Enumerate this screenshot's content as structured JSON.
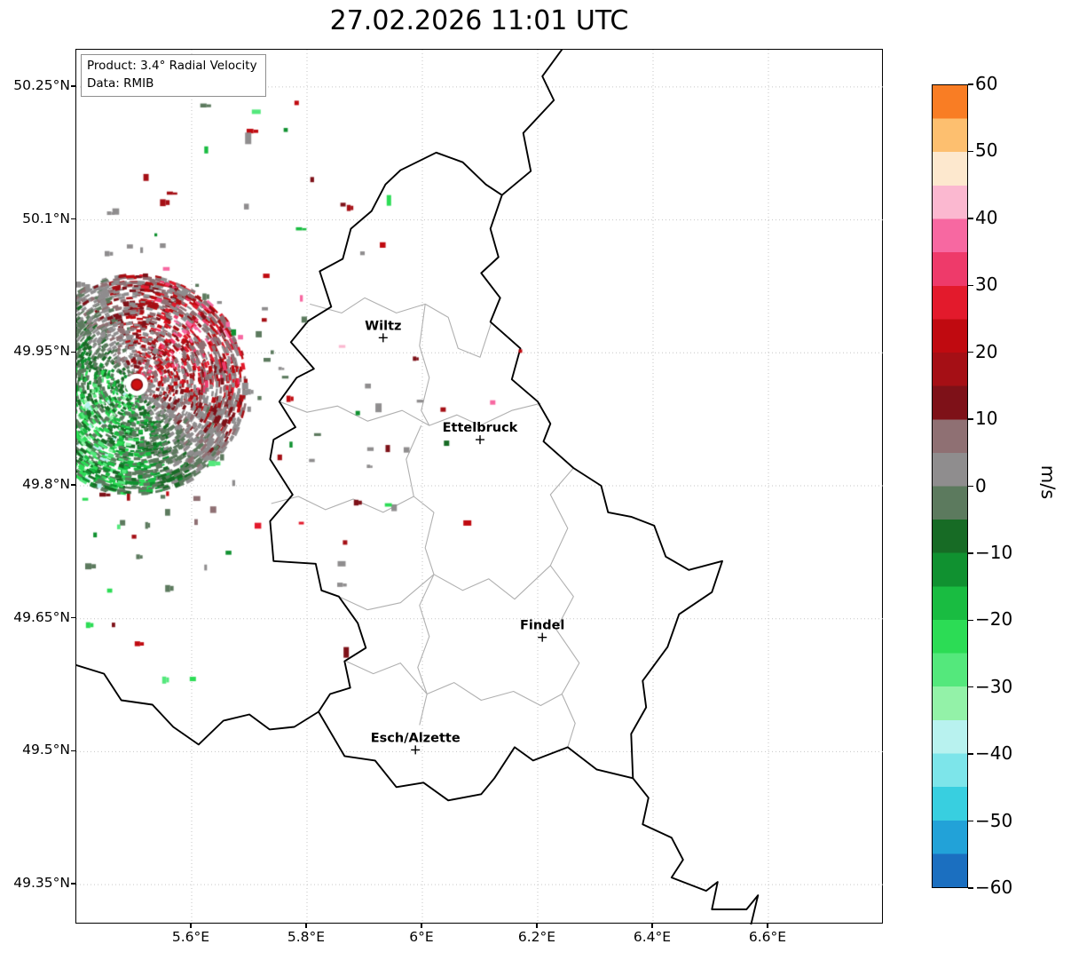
{
  "title": "27.02.2026 11:01 UTC",
  "info_box": {
    "product_line": "Product: 3.4° Radial Velocity",
    "data_line": "Data: RMIB"
  },
  "chart_data": {
    "type": "heatmap",
    "title": "27.02.2026 11:01 UTC",
    "product": "3.4° Radial Velocity",
    "data_source": "RMIB",
    "units": "m/s",
    "x_axis": {
      "range": [
        5.4,
        6.8
      ],
      "ticks": [
        {
          "label": "5.6°E",
          "value": 5.6
        },
        {
          "label": "5.8°E",
          "value": 5.8
        },
        {
          "label": "6°E",
          "value": 6.0
        },
        {
          "label": "6.2°E",
          "value": 6.2
        },
        {
          "label": "6.4°E",
          "value": 6.4
        },
        {
          "label": "6.6°E",
          "value": 6.6
        }
      ]
    },
    "y_axis": {
      "range": [
        49.305,
        50.292
      ],
      "ticks": [
        {
          "label": "50.25°N",
          "value": 50.25
        },
        {
          "label": "50.1°N",
          "value": 50.1
        },
        {
          "label": "49.95°N",
          "value": 49.95
        },
        {
          "label": "49.8°N",
          "value": 49.8
        },
        {
          "label": "49.65°N",
          "value": 49.65
        },
        {
          "label": "49.5°N",
          "value": 49.5
        },
        {
          "label": "49.35°N",
          "value": 49.35
        }
      ]
    },
    "colorbar": {
      "label": "m/s",
      "range": [
        -60,
        60
      ],
      "ticks": [
        {
          "label": "60",
          "value": 60
        },
        {
          "label": "50",
          "value": 50
        },
        {
          "label": "40",
          "value": 40
        },
        {
          "label": "30",
          "value": 30
        },
        {
          "label": "20",
          "value": 20
        },
        {
          "label": "10",
          "value": 10
        },
        {
          "label": "0",
          "value": 0
        },
        {
          "label": "−10",
          "value": -10
        },
        {
          "label": "−20",
          "value": -20
        },
        {
          "label": "−30",
          "value": -30
        },
        {
          "label": "−40",
          "value": -40
        },
        {
          "label": "−50",
          "value": -50
        },
        {
          "label": "−60",
          "value": -60
        }
      ],
      "band_colors": [
        "#1b6fc0",
        "#22a2d8",
        "#38cfe0",
        "#7de5ea",
        "#b8f2ef",
        "#93f2a8",
        "#54e87c",
        "#2cdc55",
        "#19bc41",
        "#109130",
        "#176b25",
        "#5c7a5e",
        "#8f8d8e",
        "#8f7073",
        "#7e1118",
        "#a50f15",
        "#c00a10",
        "#e31a2c",
        "#ee3a6a",
        "#f768a1",
        "#fbb8d0",
        "#fde8ce",
        "#fdbf6f",
        "#f97d24"
      ]
    },
    "radar_site": {
      "lon": 5.505,
      "lat": 49.914
    },
    "velocity_field": {
      "seed": 1337,
      "max_outbound_ms": 30,
      "max_inbound_ms": -30,
      "outbound_azimuth_deg": 52,
      "dense_count": 3800,
      "dense_radius_px": 122,
      "sparse_count": 150,
      "sparse_radius_px": 335
    },
    "notable_echoes": [
      {
        "lon": 5.712,
        "lat": 50.222,
        "v": -27,
        "w": 10,
        "h": 5
      },
      {
        "lon": 5.782,
        "lat": 50.232,
        "v": 22,
        "w": 5,
        "h": 5
      },
      {
        "lon": 5.698,
        "lat": 50.192,
        "v": 3,
        "w": 7,
        "h": 13
      },
      {
        "lon": 5.585,
        "lat": 50.246,
        "v": 2,
        "w": 5,
        "h": 9
      },
      {
        "lon": 5.942,
        "lat": 50.122,
        "v": -22,
        "w": 5,
        "h": 12
      },
      {
        "lon": 6.078,
        "lat": 49.758,
        "v": 20,
        "w": 9,
        "h": 6
      },
      {
        "lon": 6.122,
        "lat": 49.894,
        "v": 38,
        "w": 6,
        "h": 5
      },
      {
        "lon": 6.036,
        "lat": 49.886,
        "v": 16,
        "w": 6,
        "h": 5
      },
      {
        "lon": 6.042,
        "lat": 49.848,
        "v": -8,
        "w": 6,
        "h": 6
      },
      {
        "lon": 5.868,
        "lat": 49.612,
        "v": 12,
        "w": 6,
        "h": 12
      },
      {
        "lon": 5.602,
        "lat": 49.582,
        "v": -24,
        "w": 7,
        "h": 5
      },
      {
        "lon": 5.86,
        "lat": 49.712,
        "v": 4,
        "w": 9,
        "h": 6
      },
      {
        "lon": 5.866,
        "lat": 49.736,
        "v": 18,
        "w": 5,
        "h": 5
      },
      {
        "lon": 5.924,
        "lat": 49.888,
        "v": 2,
        "w": 7,
        "h": 10
      },
      {
        "lon": 5.888,
        "lat": 49.882,
        "v": -12,
        "w": 5,
        "h": 5
      },
      {
        "lon": 5.94,
        "lat": 49.842,
        "v": 10,
        "w": 5,
        "h": 8
      },
      {
        "lon": 6.17,
        "lat": 49.952,
        "v": 24,
        "w": 4,
        "h": 4
      },
      {
        "lon": 5.44,
        "lat": 49.8,
        "v": -38,
        "w": 5,
        "h": 5
      }
    ],
    "cities": [
      {
        "name": "Wiltz",
        "lon": 5.932,
        "lat": 49.967
      },
      {
        "name": "Ettelbruck",
        "lon": 6.1,
        "lat": 49.852
      },
      {
        "name": "Findel",
        "lon": 6.208,
        "lat": 49.629
      },
      {
        "name": "Esch/Alzette",
        "lon": 5.988,
        "lat": 49.502
      }
    ],
    "borders": {
      "luxembourg": [
        [
          6.024,
          50.176
        ],
        [
          6.07,
          50.165
        ],
        [
          6.11,
          50.14
        ],
        [
          6.138,
          50.128
        ],
        [
          6.118,
          50.09
        ],
        [
          6.132,
          50.058
        ],
        [
          6.102,
          50.04
        ],
        [
          6.135,
          50.012
        ],
        [
          6.118,
          49.985
        ],
        [
          6.17,
          49.955
        ],
        [
          6.155,
          49.92
        ],
        [
          6.2,
          49.895
        ],
        [
          6.222,
          49.87
        ],
        [
          6.21,
          49.85
        ],
        [
          6.262,
          49.82
        ],
        [
          6.31,
          49.8
        ],
        [
          6.322,
          49.77
        ],
        [
          6.362,
          49.765
        ],
        [
          6.402,
          49.755
        ],
        [
          6.422,
          49.72
        ],
        [
          6.462,
          49.705
        ],
        [
          6.52,
          49.715
        ],
        [
          6.502,
          49.68
        ],
        [
          6.445,
          49.655
        ],
        [
          6.425,
          49.618
        ],
        [
          6.382,
          49.58
        ],
        [
          6.388,
          49.55
        ],
        [
          6.362,
          49.52
        ],
        [
          6.365,
          49.47
        ],
        [
          6.302,
          49.48
        ],
        [
          6.252,
          49.505
        ],
        [
          6.192,
          49.49
        ],
        [
          6.16,
          49.505
        ],
        [
          6.125,
          49.47
        ],
        [
          6.102,
          49.452
        ],
        [
          6.045,
          49.445
        ],
        [
          6.002,
          49.465
        ],
        [
          5.955,
          49.46
        ],
        [
          5.918,
          49.49
        ],
        [
          5.865,
          49.495
        ],
        [
          5.82,
          49.545
        ],
        [
          5.84,
          49.565
        ],
        [
          5.875,
          49.572
        ],
        [
          5.865,
          49.602
        ],
        [
          5.902,
          49.617
        ],
        [
          5.888,
          49.645
        ],
        [
          5.855,
          49.675
        ],
        [
          5.825,
          49.682
        ],
        [
          5.815,
          49.712
        ],
        [
          5.742,
          49.715
        ],
        [
          5.736,
          49.76
        ],
        [
          5.775,
          49.79
        ],
        [
          5.736,
          49.83
        ],
        [
          5.742,
          49.852
        ],
        [
          5.78,
          49.866
        ],
        [
          5.752,
          49.895
        ],
        [
          5.782,
          49.922
        ],
        [
          5.812,
          49.932
        ],
        [
          5.772,
          49.962
        ],
        [
          5.802,
          49.986
        ],
        [
          5.842,
          50.002
        ],
        [
          5.822,
          50.042
        ],
        [
          5.862,
          50.056
        ],
        [
          5.876,
          50.09
        ],
        [
          5.912,
          50.11
        ],
        [
          5.936,
          50.14
        ],
        [
          5.962,
          50.156
        ]
      ],
      "be_de": [
        [
          6.138,
          50.128
        ],
        [
          6.188,
          50.155
        ],
        [
          6.175,
          50.198
        ],
        [
          6.228,
          50.235
        ],
        [
          6.208,
          50.262
        ],
        [
          6.245,
          50.295
        ]
      ],
      "fr_be": [
        [
          5.82,
          49.545
        ],
        [
          5.778,
          49.528
        ],
        [
          5.735,
          49.525
        ],
        [
          5.7,
          49.542
        ],
        [
          5.655,
          49.535
        ],
        [
          5.612,
          49.508
        ],
        [
          5.568,
          49.528
        ],
        [
          5.532,
          49.553
        ],
        [
          5.478,
          49.558
        ],
        [
          5.448,
          49.588
        ],
        [
          5.398,
          49.598
        ]
      ],
      "fr_de": [
        [
          6.365,
          49.47
        ],
        [
          6.392,
          49.448
        ],
        [
          6.382,
          49.418
        ],
        [
          6.432,
          49.403
        ],
        [
          6.452,
          49.378
        ],
        [
          6.432,
          49.358
        ],
        [
          6.492,
          49.343
        ],
        [
          6.512,
          49.353
        ],
        [
          6.502,
          49.322
        ],
        [
          6.562,
          49.322
        ],
        [
          6.582,
          49.338
        ],
        [
          6.568,
          49.3
        ]
      ],
      "internal": [
        [
          [
            5.805,
            50.005
          ],
          [
            5.86,
            49.995
          ],
          [
            5.9,
            50.012
          ],
          [
            5.955,
            49.995
          ],
          [
            6.005,
            50.005
          ],
          [
            6.045,
            49.99
          ],
          [
            6.062,
            49.955
          ],
          [
            6.1,
            49.945
          ],
          [
            6.12,
            49.985
          ]
        ],
        [
          [
            5.752,
            49.895
          ],
          [
            5.8,
            49.883
          ],
          [
            5.853,
            49.89
          ],
          [
            5.905,
            49.873
          ],
          [
            5.965,
            49.885
          ],
          [
            6.012,
            49.868
          ],
          [
            6.06,
            49.88
          ],
          [
            6.1,
            49.868
          ],
          [
            6.155,
            49.885
          ],
          [
            6.205,
            49.893
          ]
        ],
        [
          [
            6.005,
            50.005
          ],
          [
            5.995,
            49.958
          ],
          [
            6.012,
            49.922
          ],
          [
            5.998,
            49.885
          ],
          [
            6.012,
            49.868
          ]
        ],
        [
          [
            5.738,
            49.78
          ],
          [
            5.785,
            49.788
          ],
          [
            5.832,
            49.773
          ],
          [
            5.88,
            49.785
          ],
          [
            5.932,
            49.77
          ],
          [
            5.985,
            49.788
          ],
          [
            6.02,
            49.77
          ]
        ],
        [
          [
            5.985,
            49.788
          ],
          [
            5.972,
            49.83
          ],
          [
            5.998,
            49.868
          ]
        ],
        [
          [
            6.02,
            49.77
          ],
          [
            6.005,
            49.73
          ],
          [
            6.02,
            49.7
          ],
          [
            5.995,
            49.665
          ],
          [
            6.012,
            49.63
          ],
          [
            5.992,
            49.595
          ],
          [
            6.008,
            49.565
          ],
          [
            5.995,
            49.53
          ]
        ],
        [
          [
            6.262,
            49.82
          ],
          [
            6.222,
            49.79
          ],
          [
            6.252,
            49.752
          ],
          [
            6.222,
            49.71
          ],
          [
            6.262,
            49.675
          ],
          [
            6.232,
            49.638
          ],
          [
            6.272,
            49.6
          ],
          [
            6.242,
            49.565
          ],
          [
            6.265,
            49.532
          ],
          [
            6.252,
            49.505
          ]
        ],
        [
          [
            5.855,
            49.675
          ],
          [
            5.905,
            49.66
          ],
          [
            5.962,
            49.668
          ],
          [
            6.02,
            49.7
          ]
        ],
        [
          [
            6.02,
            49.7
          ],
          [
            6.07,
            49.682
          ],
          [
            6.115,
            49.695
          ],
          [
            6.16,
            49.672
          ],
          [
            6.222,
            49.71
          ]
        ],
        [
          [
            5.868,
            49.602
          ],
          [
            5.915,
            49.588
          ],
          [
            5.962,
            49.6
          ],
          [
            6.008,
            49.565
          ],
          [
            6.055,
            49.578
          ],
          [
            6.102,
            49.558
          ],
          [
            6.158,
            49.568
          ],
          [
            6.205,
            49.552
          ],
          [
            6.242,
            49.565
          ]
        ]
      ]
    }
  }
}
